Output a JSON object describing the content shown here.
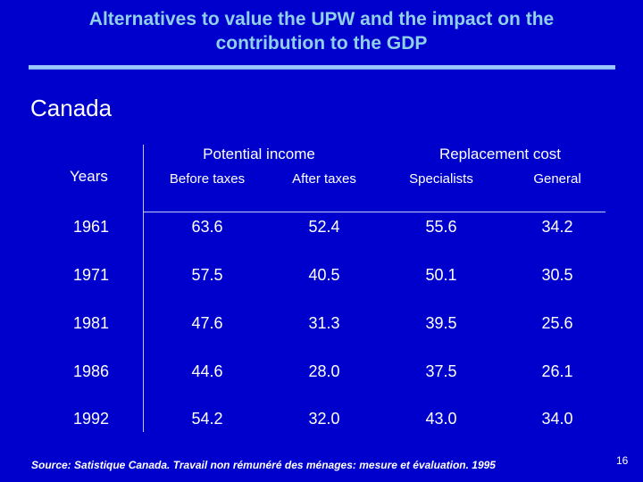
{
  "slide": {
    "title_line1": "Alternatives to value the UPW and the impact on the",
    "title_line2": "contribution to the GDP",
    "country": "Canada",
    "page_number": "16",
    "source": "Source: Satistique Canada. Travail non rémunéré des ménages: mesure et évaluation. 1995"
  },
  "table": {
    "years_header": "Years",
    "group_potential": "Potential income",
    "group_replacement": "Replacement cost",
    "col_before": "Before taxes",
    "col_after": "After taxes",
    "col_specialists": "Specialists",
    "col_general": "General",
    "rows": [
      {
        "year": "1961",
        "before": "63.6",
        "after": "52.4",
        "specialists": "55.6",
        "general": "34.2"
      },
      {
        "year": "1971",
        "before": "57.5",
        "after": "40.5",
        "specialists": "50.1",
        "general": "30.5"
      },
      {
        "year": "1981",
        "before": "47.6",
        "after": "31.3",
        "specialists": "39.5",
        "general": "25.6"
      },
      {
        "year": "1986",
        "before": "44.6",
        "after": "28.0",
        "specialists": "37.5",
        "general": "26.1"
      },
      {
        "year": "1992",
        "before": "54.2",
        "after": "32.0",
        "specialists": "43.0",
        "general": "34.0"
      }
    ]
  }
}
